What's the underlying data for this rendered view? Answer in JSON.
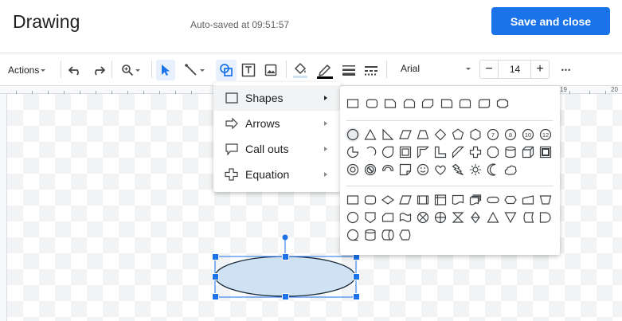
{
  "header": {
    "title": "Drawing",
    "autosave": "Auto-saved at 09:51:57",
    "save_label": "Save and close"
  },
  "toolbar": {
    "actions_label": "Actions",
    "font": "Arial",
    "font_size": "14",
    "minus": "−",
    "plus": "+",
    "more": "•••"
  },
  "ruler": {
    "labels": [
      "19",
      "20"
    ]
  },
  "shape_menu": {
    "items": [
      {
        "label": "Shapes",
        "icon": "square-icon"
      },
      {
        "label": "Arrows",
        "icon": "arrow-icon"
      },
      {
        "label": "Call outs",
        "icon": "callout-icon"
      },
      {
        "label": "Equation",
        "icon": "plus-icon"
      }
    ]
  },
  "submenu": {
    "groups": [
      {
        "name": "shapes-row",
        "icons": [
          "rectangle",
          "rounded-rectangle",
          "snip-corner-rectangle",
          "snip-same-side-rectangle",
          "snip-diagonal-rectangle",
          "round-one-corner-rectangle",
          "round-same-side-rectangle",
          "round-diagonal-rectangle",
          "plaque"
        ]
      },
      {
        "name": "basic-shapes",
        "icons": [
          "oval",
          "triangle",
          "right-triangle",
          "parallelogram",
          "trapezoid",
          "diamond",
          "pentagon",
          "hexagon",
          "heptagon",
          "octagon",
          "decagon",
          "dodecagon",
          "pie",
          "chord",
          "teardrop",
          "frame",
          "half-frame",
          "corner",
          "diagonal-stripe",
          "plus",
          "octagon-frame",
          "can",
          "cube",
          "bevel",
          "donut",
          "no-symbol",
          "block-arc",
          "folded-corner",
          "smiley-face",
          "heart",
          "lightning-bolt",
          "sun",
          "moon",
          "cloud"
        ]
      },
      {
        "name": "flowchart",
        "icons": [
          "process",
          "alternate-process",
          "decision",
          "data",
          "predefined-process",
          "internal-storage",
          "document",
          "multidocument",
          "terminator",
          "preparation",
          "manual-input",
          "manual-operation",
          "connector",
          "off-page-connector",
          "card",
          "punched-tape",
          "summing-junction",
          "or",
          "collate",
          "sort",
          "extract",
          "merge",
          "stored-data",
          "delay",
          "sequential-access-storage",
          "magnetic-disk",
          "direct-access-storage",
          "display"
        ]
      }
    ],
    "number_labels": [
      "7",
      "8",
      "10",
      "12"
    ]
  },
  "colors": {
    "accent": "#1a73e8",
    "shape_fill": "#cfe2f3",
    "shape_stroke": "#1a2b3c"
  }
}
